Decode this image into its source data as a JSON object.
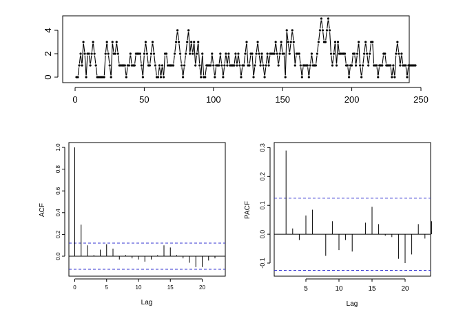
{
  "chart_data": [
    {
      "id": "series",
      "type": "line",
      "title": "",
      "xlabel": "",
      "ylabel": "",
      "xlim": [
        0,
        250
      ],
      "ylim": [
        0,
        5
      ],
      "xticks": [
        "0",
        "50",
        "100",
        "150",
        "200",
        "250"
      ],
      "yticks": [
        "0",
        "2",
        "4"
      ],
      "x_start": 1,
      "values": [
        0,
        0,
        1,
        2,
        1,
        3,
        2,
        0,
        2,
        2,
        1,
        2,
        3,
        2,
        1,
        0,
        0,
        0,
        0,
        0,
        0,
        2,
        3,
        2,
        1,
        0,
        3,
        2,
        2,
        3,
        2,
        1,
        1,
        1,
        1,
        1,
        0,
        1,
        1,
        2,
        1,
        1,
        1,
        2,
        2,
        2,
        2,
        1,
        0,
        2,
        3,
        2,
        1,
        1,
        2,
        3,
        2,
        1,
        0,
        0,
        1,
        0,
        1,
        0,
        2,
        2,
        1,
        1,
        1,
        1,
        1,
        2,
        3,
        4,
        3,
        2,
        1,
        0,
        1,
        2,
        3,
        4,
        2,
        3,
        2,
        3,
        1,
        2,
        3,
        1,
        0,
        2,
        0,
        0,
        1,
        1,
        1,
        1,
        2,
        1,
        0,
        1,
        1,
        1,
        2,
        1,
        0,
        1,
        2,
        1,
        2,
        1,
        1,
        1,
        1,
        2,
        1,
        2,
        1,
        0,
        1,
        1,
        2,
        3,
        1,
        1,
        2,
        2,
        0,
        1,
        2,
        3,
        2,
        1,
        2,
        1,
        0,
        1,
        2,
        1,
        2,
        2,
        2,
        2,
        3,
        2,
        1,
        2,
        3,
        2,
        2,
        0,
        4,
        3,
        2,
        3,
        4,
        3,
        1,
        2,
        2,
        2,
        1,
        0,
        1,
        1,
        1,
        1,
        0,
        1,
        2,
        1,
        1,
        1,
        2,
        3,
        4,
        5,
        4,
        3,
        3,
        4,
        5,
        4,
        2,
        1,
        2,
        3,
        1,
        3,
        2,
        2,
        2,
        2,
        2,
        1,
        1,
        0,
        1,
        1,
        2,
        2,
        1,
        2,
        3,
        1,
        0,
        1,
        2,
        3,
        2,
        1,
        2,
        3,
        3,
        1,
        1,
        1,
        0,
        1,
        1,
        1,
        2,
        2,
        1,
        1,
        1,
        1,
        0,
        1,
        0,
        2,
        3,
        2,
        1,
        2,
        1,
        1,
        1,
        0,
        1,
        1,
        1,
        1,
        1,
        1
      ]
    },
    {
      "id": "acf",
      "type": "bar",
      "title": "",
      "xlabel": "Lag",
      "ylabel": "ACF",
      "xlim": [
        0,
        23
      ],
      "ylim": [
        -0.12,
        1.0
      ],
      "xticks": [
        "0",
        "5",
        "10",
        "15",
        "20"
      ],
      "yticks": [
        "0.0",
        "0.2",
        "0.4",
        "0.6",
        "0.8",
        "1.0"
      ],
      "conf_limit": 0.12,
      "lags": [
        0,
        1,
        2,
        3,
        4,
        5,
        6,
        7,
        8,
        9,
        10,
        11,
        12,
        13,
        14,
        15,
        16,
        17,
        18,
        19,
        20,
        21,
        22
      ],
      "values": [
        1.0,
        0.29,
        0.1,
        0.01,
        0.06,
        0.11,
        0.07,
        -0.03,
        0.01,
        -0.02,
        -0.03,
        -0.05,
        -0.03,
        0.01,
        0.1,
        0.08,
        0.01,
        -0.02,
        -0.06,
        -0.1,
        -0.1,
        -0.04,
        -0.02
      ]
    },
    {
      "id": "pacf",
      "type": "bar",
      "title": "",
      "xlabel": "Lag",
      "ylabel": "PACF",
      "xlim": [
        1,
        23
      ],
      "ylim": [
        -0.13,
        0.31
      ],
      "xticks": [
        "5",
        "10",
        "15",
        "20"
      ],
      "yticks": [
        "-0.1",
        "0.0",
        "0.1",
        "0.2",
        "0.3"
      ],
      "conf_limit": 0.125,
      "lags": [
        1,
        2,
        3,
        4,
        5,
        6,
        7,
        8,
        9,
        10,
        11,
        12,
        13,
        14,
        15,
        16,
        17,
        18,
        19,
        20,
        21,
        22,
        23
      ],
      "values": [
        0.29,
        0.02,
        -0.02,
        0.065,
        0.085,
        0.0,
        -0.075,
        0.045,
        -0.055,
        -0.02,
        -0.06,
        0.0,
        0.04,
        0.095,
        0.035,
        -0.005,
        -0.01,
        -0.085,
        -0.1,
        -0.07,
        0.035,
        -0.015,
        0.045
      ]
    }
  ]
}
